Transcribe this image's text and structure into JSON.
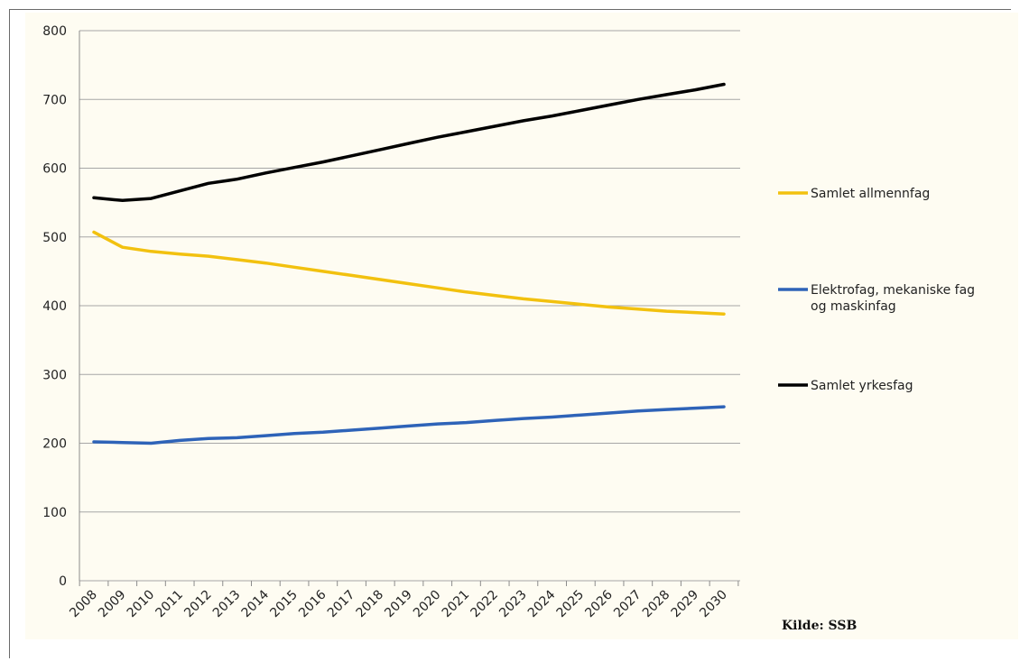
{
  "chart_data": {
    "type": "line",
    "x": [
      "2008",
      "2009",
      "2010",
      "2011",
      "2012",
      "2013",
      "2014",
      "2015",
      "2016",
      "2017",
      "2018",
      "2019",
      "2020",
      "2021",
      "2022",
      "2023",
      "2024",
      "2025",
      "2026",
      "2027",
      "2028",
      "2029",
      "2030"
    ],
    "ylim": [
      0,
      800
    ],
    "yticks": [
      "0",
      "100",
      "200",
      "300",
      "400",
      "500",
      "600",
      "700",
      "800"
    ],
    "grid": true,
    "legend_position": "right",
    "series": [
      {
        "name": "Samlet allmennfag",
        "color": "#f2c10f",
        "values": [
          507,
          485,
          479,
          475,
          472,
          467,
          462,
          456,
          450,
          444,
          438,
          432,
          426,
          420,
          415,
          410,
          406,
          402,
          398,
          395,
          392,
          390,
          388
        ]
      },
      {
        "name": "Elektrofag, mekaniske fag og maskinfag",
        "color": "#2e63b8",
        "values": [
          202,
          201,
          200,
          204,
          207,
          208,
          211,
          214,
          216,
          219,
          222,
          225,
          228,
          230,
          233,
          236,
          238,
          241,
          244,
          247,
          249,
          251,
          253
        ]
      },
      {
        "name": "Samlet yrkesfag",
        "color": "#000000",
        "values": [
          557,
          553,
          556,
          567,
          578,
          584,
          593,
          601,
          609,
          618,
          627,
          636,
          645,
          653,
          661,
          669,
          676,
          684,
          692,
          700,
          707,
          714,
          722
        ]
      }
    ],
    "source": "Kilde:  SSB"
  }
}
